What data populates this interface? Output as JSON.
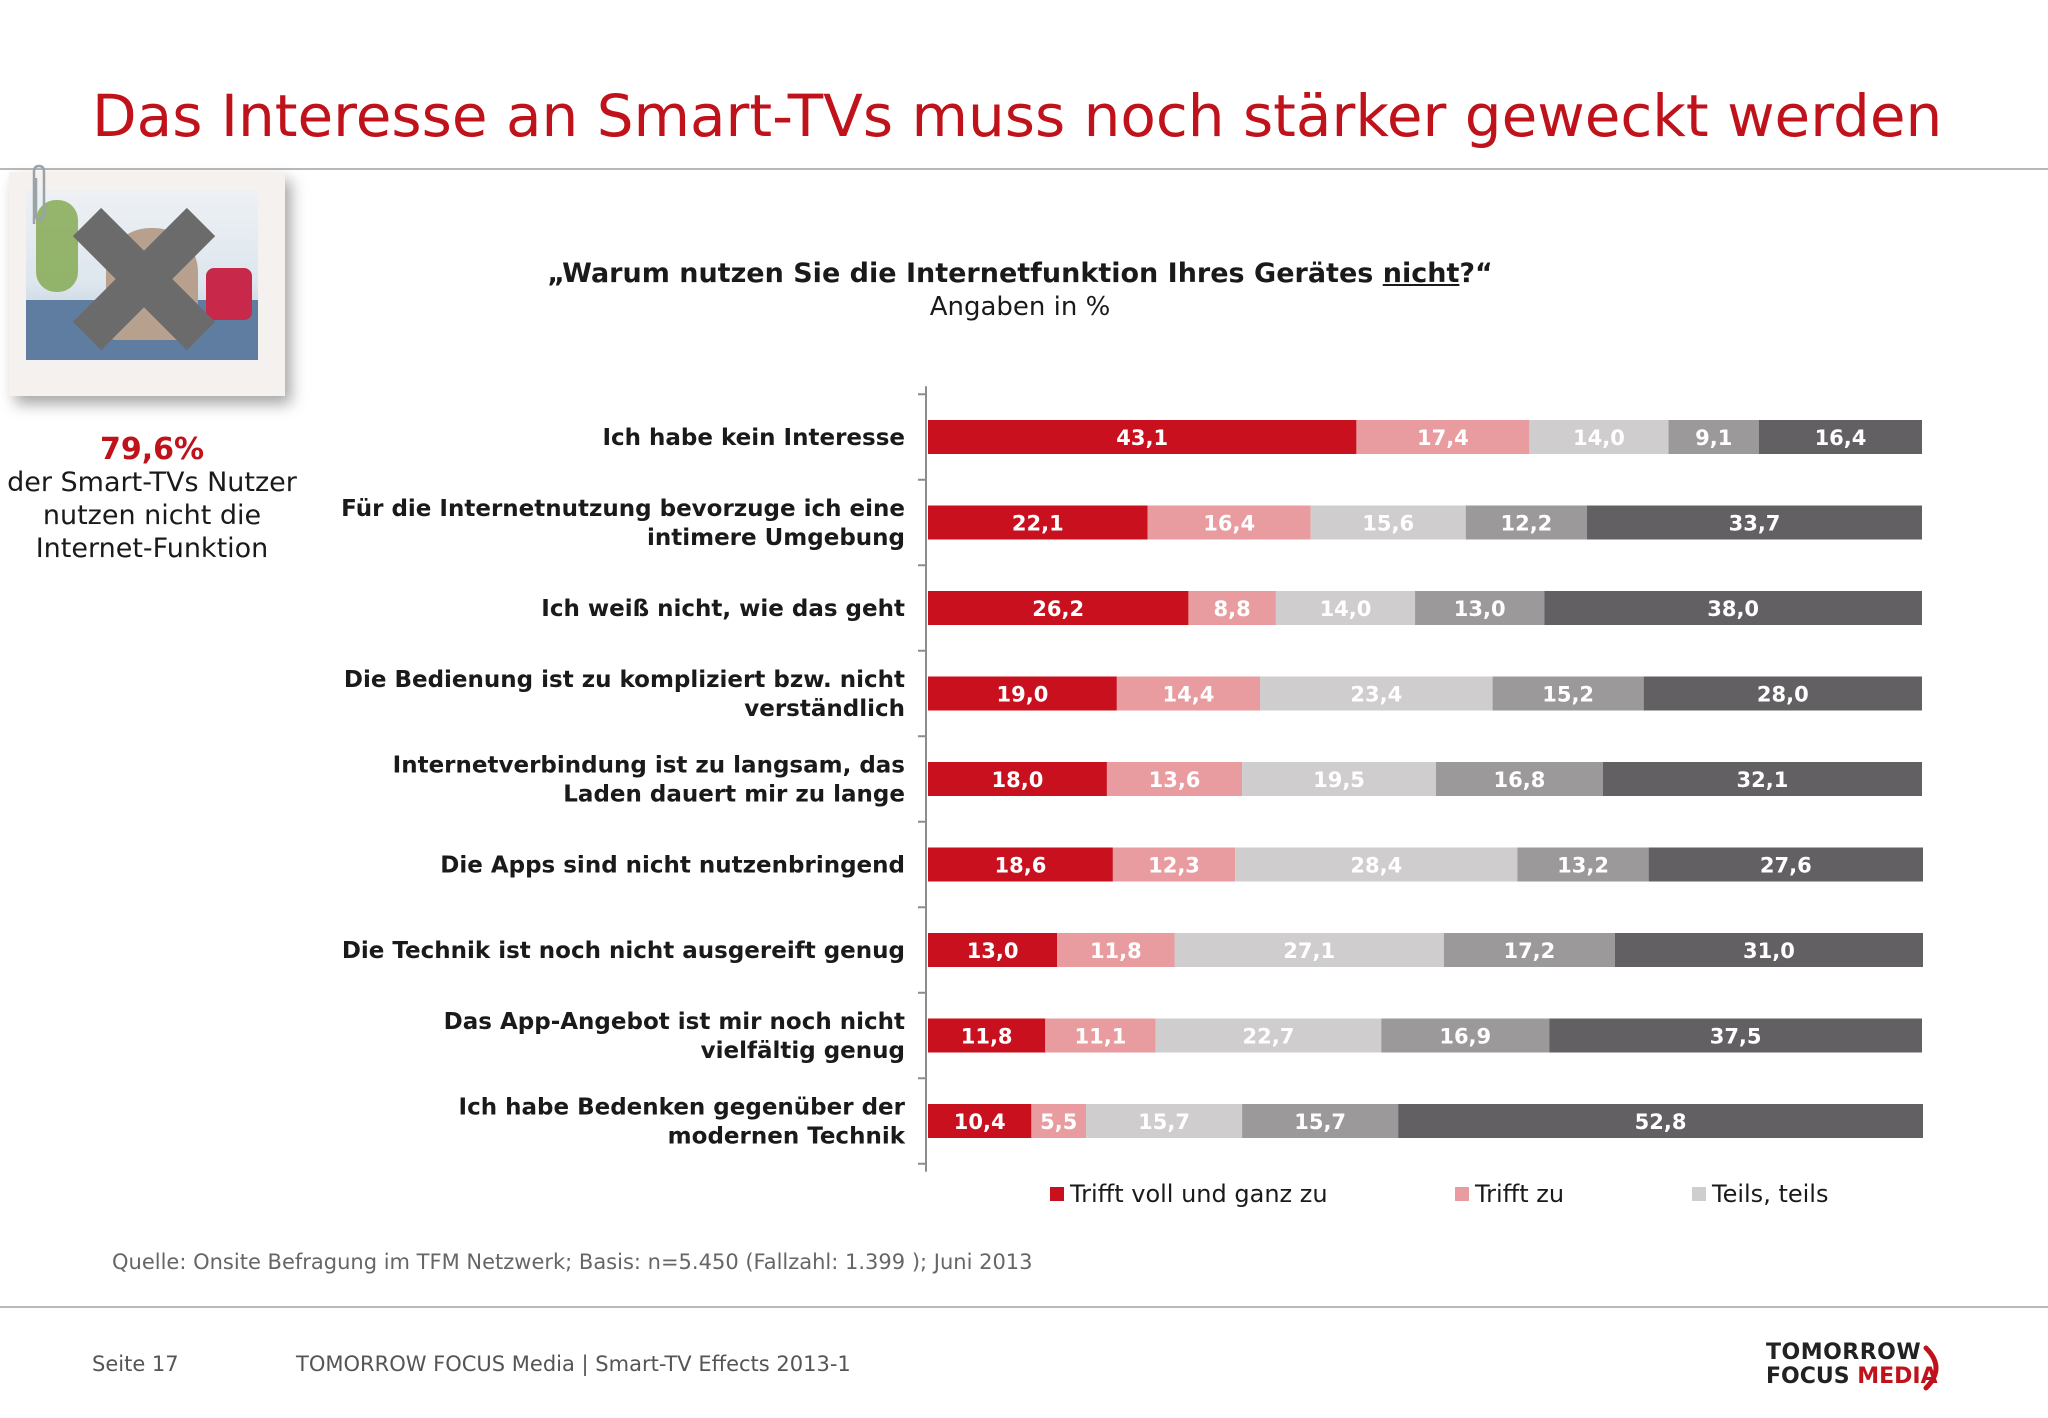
{
  "page": {
    "title": "Das Interesse an Smart-TVs muss noch stärker geweckt werden",
    "source": "Quelle: Onsite Befragung im TFM Netzwerk; Basis: n=5.450 (Fallzahl: 1.399 ); Juni 2013",
    "footer_page": "Seite 17",
    "footer_text": "TOMORROW FOCUS Media  |  Smart-TV Effects 2013-1",
    "logo_line1": "TOMORROW",
    "logo_line2_a": "FOCUS ",
    "logo_line2_b": "MEDIA"
  },
  "sidebar": {
    "photo_icon": "crossed-out-photo-icon",
    "stat_value": "79,6%",
    "stat_text": "der Smart-TVs Nutzer nutzen nicht die Internet-Funktion"
  },
  "chart_data": {
    "type": "bar",
    "orientation": "horizontal",
    "stacked": true,
    "title_pre": "„Warum nutzen Sie die Internetfunktion Ihres Gerätes ",
    "title_emph": "nicht",
    "title_post": "?“",
    "subtitle": "Angaben in %",
    "categories": [
      [
        "Ich habe kein Interesse"
      ],
      [
        "Für die Internetnutzung bevorzuge ich eine",
        "intimere Umgebung"
      ],
      [
        "Ich weiß nicht, wie das geht"
      ],
      [
        "Die Bedienung ist zu kompliziert bzw. nicht",
        "verständlich"
      ],
      [
        "Internetverbindung ist zu langsam, das",
        "Laden dauert mir zu lange"
      ],
      [
        "Die Apps sind nicht nutzenbringend"
      ],
      [
        "Die Technik ist noch nicht ausgereift genug"
      ],
      [
        "Das App-Angebot ist mir noch nicht",
        "vielfältig genug"
      ],
      [
        "Ich habe Bedenken gegenüber der",
        "modernen Technik"
      ]
    ],
    "series": [
      {
        "name": "Trifft voll und ganz zu",
        "color": "#c8101e",
        "values": [
          43.1,
          22.1,
          26.2,
          19.0,
          18.0,
          18.6,
          13.0,
          11.8,
          10.4
        ]
      },
      {
        "name": "Trifft zu",
        "color": "#e99c9f",
        "values": [
          17.4,
          16.4,
          8.8,
          14.4,
          13.6,
          12.3,
          11.8,
          11.1,
          5.5
        ]
      },
      {
        "name": "Teils, teils",
        "color": "#cfcdce",
        "values": [
          14.0,
          15.6,
          14.0,
          23.4,
          19.5,
          28.4,
          27.1,
          22.7,
          15.7
        ]
      },
      {
        "color": "#9b999a",
        "values": [
          9.1,
          12.2,
          13.0,
          15.2,
          16.8,
          13.2,
          17.2,
          16.9,
          15.7
        ]
      },
      {
        "color": "#626062",
        "values": [
          16.4,
          33.7,
          38.0,
          28.0,
          32.1,
          27.6,
          31.0,
          37.5,
          52.8
        ]
      }
    ],
    "value_labels": [
      [
        "43,1",
        "17,4",
        "14,0",
        "9,1",
        "16,4"
      ],
      [
        "22,1",
        "16,4",
        "15,6",
        "12,2",
        "33,7"
      ],
      [
        "26,2",
        "8,8",
        "14,0",
        "13,0",
        "38,0"
      ],
      [
        "19,0",
        "14,4",
        "23,4",
        "15,2",
        "28,0"
      ],
      [
        "18,0",
        "13,6",
        "19,5",
        "16,8",
        "32,1"
      ],
      [
        "18,6",
        "12,3",
        "28,4",
        "13,2",
        "27,6"
      ],
      [
        "13,0",
        "11,8",
        "27,1",
        "17,2",
        "31,0"
      ],
      [
        "11,8",
        "11,1",
        "22,7",
        "16,9",
        "37,5"
      ],
      [
        "10,4",
        "5,5",
        "15,7",
        "15,7",
        "52,8"
      ]
    ],
    "xlim": [
      0,
      100
    ],
    "grid": false,
    "legend_position": "bottom"
  }
}
